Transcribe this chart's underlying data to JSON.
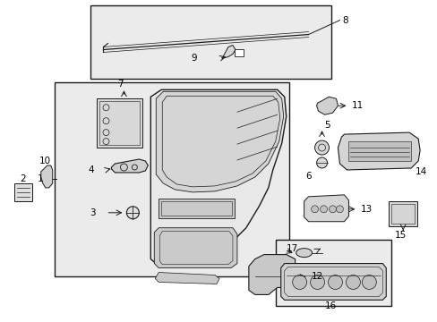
{
  "background_color": "#ffffff",
  "fig_width": 4.89,
  "fig_height": 3.6,
  "dpi": 100,
  "line_color": "#1a1a1a",
  "fill_light": "#f0f0f0",
  "fill_gray": "#d8d8d8",
  "fill_box": "#ebebeb"
}
